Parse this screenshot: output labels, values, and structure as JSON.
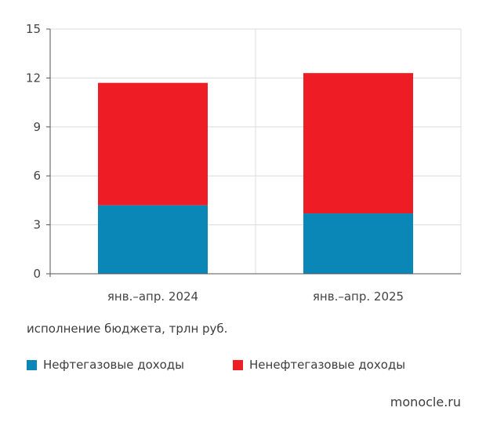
{
  "chart_data": {
    "type": "bar",
    "stacked": true,
    "categories": [
      "янв.–апр. 2024",
      "янв.–апр. 2025"
    ],
    "series": [
      {
        "name": "Нефтегазовые доходы",
        "values": [
          4.2,
          3.7
        ],
        "color": "#0a86b7"
      },
      {
        "name": "Ненефтегазовые доходы",
        "values": [
          7.5,
          8.6
        ],
        "color": "#ee1c25"
      }
    ],
    "title": "",
    "xlabel": "исполнение бюджета, трлн руб.",
    "ylabel": "",
    "ylim": [
      0,
      15
    ],
    "yticks": [
      0,
      3,
      6,
      9,
      12,
      15
    ],
    "grid": true,
    "legend_position": "bottom"
  },
  "source": "monocle.ru"
}
